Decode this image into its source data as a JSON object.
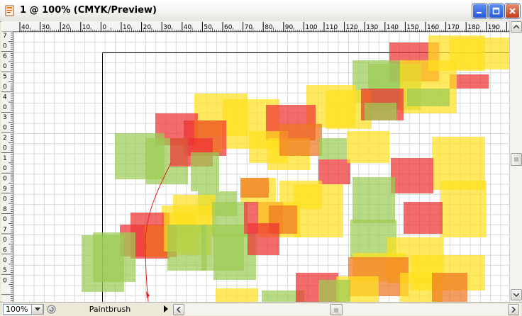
{
  "window": {
    "title": "1 @ 100% (CMYK/Preview)"
  },
  "title_buttons": {
    "minimize": "minimize-icon",
    "maximize": "maximize-icon",
    "close": "close-icon"
  },
  "ruler_top": {
    "labels": [
      "40",
      "30",
      "20",
      "10",
      "0",
      "10",
      "20",
      "30",
      "40",
      "50",
      "60",
      "70",
      "80",
      "90",
      "100",
      "110",
      "120",
      "130",
      "140",
      "150",
      "160",
      "170",
      "180",
      "190"
    ]
  },
  "ruler_left": {
    "labels": [
      "7",
      "0",
      "6",
      "0",
      "5",
      "0",
      "4",
      "0",
      "3",
      "0",
      "2",
      "0",
      "1",
      "0",
      "0",
      "9",
      "0",
      "8",
      "0",
      "7",
      "0",
      "6",
      "0",
      "5",
      "0"
    ]
  },
  "statusbar": {
    "zoom": "100%",
    "tool": "Paintbrush"
  },
  "colors": {
    "red": "#ee3333",
    "orange": "#f07722",
    "yellow": "#ffe020",
    "green": "#9ccc55",
    "grid": "#d8d8d8"
  }
}
